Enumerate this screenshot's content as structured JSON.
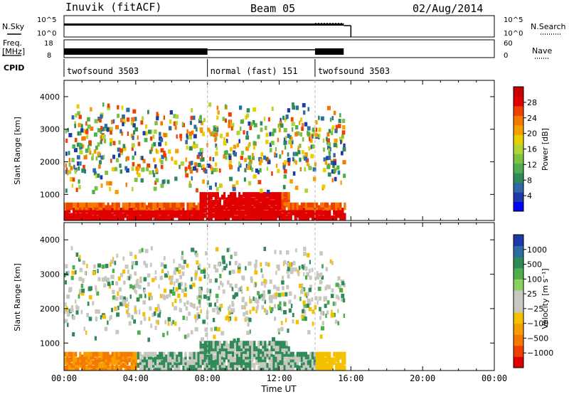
{
  "header": {
    "station": "Inuvik (fitACF)",
    "beam": "Beam 05",
    "date": "02/Aug/2014"
  },
  "top_panels": {
    "nsky_label": "N.Sky",
    "nsky_ticks": [
      "10^5",
      "10^0"
    ],
    "nsearch_label": "N.Search",
    "freq_label_1": "Freq.",
    "freq_label_2": "[MHz]",
    "freq_ticks": [
      "18",
      "8"
    ],
    "nave_label": "Nave",
    "nave_ticks": [
      "60",
      "0"
    ],
    "cpid_label": "CPID",
    "cpid_segments": [
      {
        "label": "twofsound 3503",
        "start_hour": 0,
        "end_hour": 8
      },
      {
        "label": "normal (fast) 151",
        "start_hour": 8,
        "end_hour": 14
      },
      {
        "label": "twofsound 3503",
        "start_hour": 14,
        "end_hour": 16
      }
    ]
  },
  "chart_data": [
    {
      "type": "heatmap",
      "quantity": "Power",
      "ylabel": "Slant Range [km]",
      "yticks": [
        1000,
        2000,
        3000,
        4000
      ],
      "ylim": [
        200,
        4500
      ],
      "xlim_hours": [
        0,
        24
      ],
      "data_end_hour": 15.6,
      "colorbar_label": "Power [dB]",
      "colorbar_ticks": [
        "28",
        "24",
        "20",
        "16",
        "12",
        "8",
        "4"
      ],
      "colorbar_colors": [
        "#0000ff",
        "#1c3aa8",
        "#2e6aa6",
        "#2e8b57",
        "#4cae4c",
        "#7dc242",
        "#b4d335",
        "#e8d000",
        "#f5a000",
        "#f57800",
        "#f04000",
        "#e00000",
        "#c80000"
      ]
    },
    {
      "type": "heatmap",
      "quantity": "Velocity",
      "ylabel": "Slant Range [km]",
      "yticks": [
        1000,
        2000,
        3000,
        4000
      ],
      "ylim": [
        200,
        4500
      ],
      "xlim_hours": [
        0,
        24
      ],
      "data_end_hour": 15.6,
      "colorbar_label": "Velocity [m s⁻¹]",
      "colorbar_ticks": [
        "1000",
        "500",
        "100",
        "25",
        "−25",
        "−100",
        "−500",
        "−1000"
      ],
      "colorbar_colors": [
        "#e00000",
        "#f04000",
        "#f57800",
        "#f5a000",
        "#f5c000",
        "#c8c8c0",
        "#c8c8c0",
        "#8ad060",
        "#4cae4c",
        "#2e8b57",
        "#2e6aa6",
        "#1c3aa8"
      ]
    }
  ],
  "xaxis": {
    "ticks": [
      "00:00",
      "04:00",
      "08:00",
      "12:00",
      "16:00",
      "20:00",
      "00:00"
    ],
    "label": "Time UT"
  }
}
